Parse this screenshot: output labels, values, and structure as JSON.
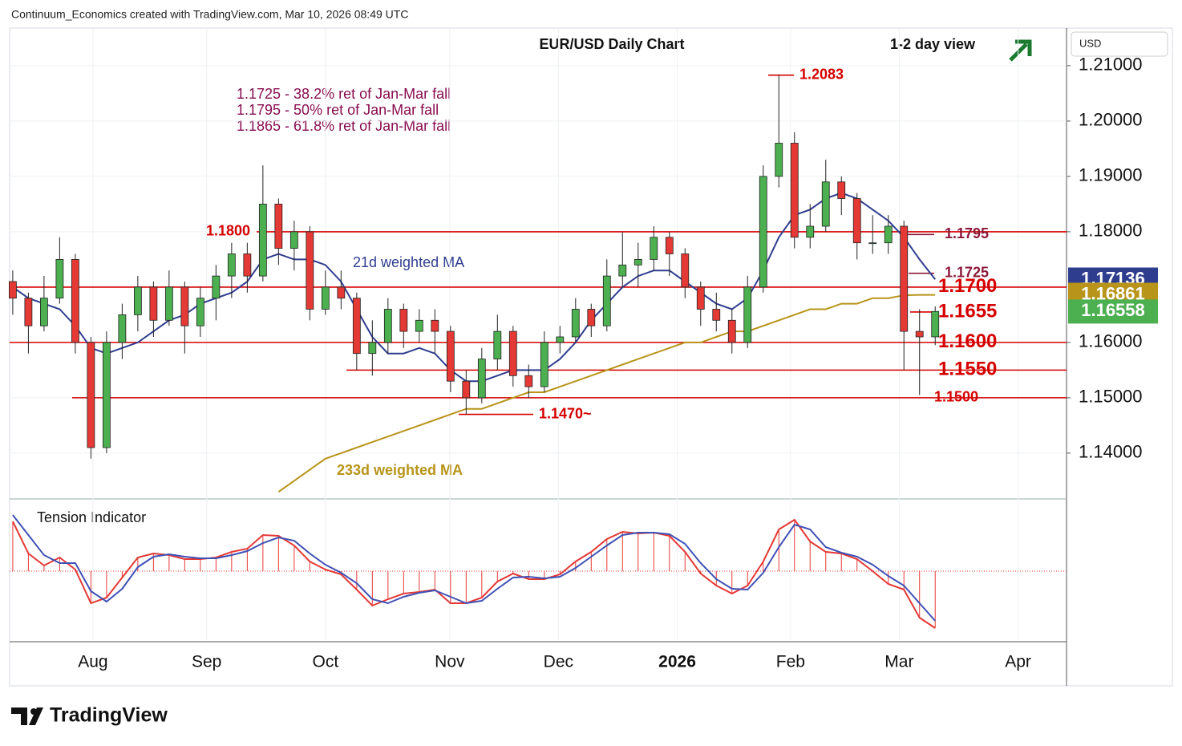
{
  "header": "Continuum_Economics created with TradingView.com, Mar 10, 2026 08:49 UTC",
  "chart_data": {
    "type": "candlestick",
    "title": "EUR/USD Daily Chart",
    "subtitle": "1-2 day view",
    "currency": "USD",
    "annotations": [
      "1.1725 - 38.2% ret of Jan-Mar fall",
      "1.1795 - 50% ret of Jan-Mar fall",
      "1.1865 - 61.8% ret of Jan-Mar fall"
    ],
    "ylim": [
      1.1323,
      1.2168
    ],
    "yticks": [
      {
        "value": 1.21,
        "label": "1.21000"
      },
      {
        "value": 1.2,
        "label": "1.20000"
      },
      {
        "value": 1.19,
        "label": "1.19000"
      },
      {
        "value": 1.18,
        "label": "1.18000"
      },
      {
        "value": 1.16,
        "label": "1.16000"
      },
      {
        "value": 1.15,
        "label": "1.15000"
      },
      {
        "value": 1.14,
        "label": "1.14000"
      }
    ],
    "xlim": [
      -0.2,
      67.4
    ],
    "xticks": [
      {
        "value": 5.13,
        "label": "Aug"
      },
      {
        "value": 12.4,
        "label": "Sep"
      },
      {
        "value": 20,
        "label": "Oct"
      },
      {
        "value": 27.95,
        "label": "Nov"
      },
      {
        "value": 34.9,
        "label": "Dec"
      },
      {
        "value": 42.5,
        "label": "2026"
      },
      {
        "value": 49.75,
        "label": "Feb"
      },
      {
        "value": 56.7,
        "label": "Mar"
      },
      {
        "value": 64.3,
        "label": "Apr"
      }
    ],
    "up_color": "#4caf50",
    "down_color": "#e53935",
    "candles": [
      [
        1.171,
        1.173,
        1.165,
        1.168
      ],
      [
        1.168,
        1.169,
        1.158,
        1.163
      ],
      [
        1.163,
        1.172,
        1.162,
        1.168
      ],
      [
        1.168,
        1.179,
        1.167,
        1.175
      ],
      [
        1.175,
        1.176,
        1.158,
        1.16
      ],
      [
        1.16,
        1.161,
        1.139,
        1.141
      ],
      [
        1.141,
        1.162,
        1.14,
        1.16
      ],
      [
        1.16,
        1.167,
        1.157,
        1.165
      ],
      [
        1.165,
        1.172,
        1.162,
        1.17
      ],
      [
        1.17,
        1.171,
        1.161,
        1.164
      ],
      [
        1.164,
        1.173,
        1.163,
        1.17
      ],
      [
        1.17,
        1.171,
        1.158,
        1.163
      ],
      [
        1.163,
        1.17,
        1.161,
        1.168
      ],
      [
        1.168,
        1.174,
        1.164,
        1.172
      ],
      [
        1.172,
        1.178,
        1.168,
        1.176
      ],
      [
        1.176,
        1.178,
        1.169,
        1.172
      ],
      [
        1.172,
        1.192,
        1.171,
        1.185
      ],
      [
        1.185,
        1.186,
        1.174,
        1.177
      ],
      [
        1.177,
        1.182,
        1.173,
        1.18
      ],
      [
        1.18,
        1.181,
        1.164,
        1.166
      ],
      [
        1.166,
        1.173,
        1.165,
        1.17
      ],
      [
        1.17,
        1.173,
        1.166,
        1.168
      ],
      [
        1.168,
        1.169,
        1.155,
        1.158
      ],
      [
        1.158,
        1.164,
        1.154,
        1.16
      ],
      [
        1.16,
        1.168,
        1.158,
        1.166
      ],
      [
        1.166,
        1.167,
        1.159,
        1.162
      ],
      [
        1.162,
        1.166,
        1.16,
        1.164
      ],
      [
        1.164,
        1.166,
        1.158,
        1.162
      ],
      [
        1.162,
        1.163,
        1.151,
        1.153
      ],
      [
        1.153,
        1.155,
        1.147,
        1.15
      ],
      [
        1.15,
        1.159,
        1.149,
        1.157
      ],
      [
        1.157,
        1.165,
        1.155,
        1.162
      ],
      [
        1.162,
        1.163,
        1.152,
        1.154
      ],
      [
        1.154,
        1.156,
        1.15,
        1.152
      ],
      [
        1.152,
        1.162,
        1.151,
        1.16
      ],
      [
        1.16,
        1.163,
        1.158,
        1.161
      ],
      [
        1.161,
        1.168,
        1.16,
        1.166
      ],
      [
        1.166,
        1.167,
        1.161,
        1.163
      ],
      [
        1.163,
        1.175,
        1.162,
        1.172
      ],
      [
        1.172,
        1.18,
        1.17,
        1.174
      ],
      [
        1.174,
        1.178,
        1.17,
        1.175
      ],
      [
        1.175,
        1.181,
        1.173,
        1.179
      ],
      [
        1.179,
        1.18,
        1.172,
        1.176
      ],
      [
        1.176,
        1.177,
        1.168,
        1.17
      ],
      [
        1.17,
        1.171,
        1.163,
        1.166
      ],
      [
        1.166,
        1.169,
        1.162,
        1.164
      ],
      [
        1.164,
        1.166,
        1.158,
        1.16
      ],
      [
        1.16,
        1.172,
        1.159,
        1.17
      ],
      [
        1.17,
        1.192,
        1.169,
        1.19
      ],
      [
        1.19,
        1.2083,
        1.188,
        1.196
      ],
      [
        1.196,
        1.198,
        1.177,
        1.179
      ],
      [
        1.179,
        1.185,
        1.177,
        1.181
      ],
      [
        1.181,
        1.193,
        1.18,
        1.189
      ],
      [
        1.189,
        1.19,
        1.183,
        1.186
      ],
      [
        1.186,
        1.187,
        1.175,
        1.178
      ],
      [
        1.178,
        1.183,
        1.176,
        1.178
      ],
      [
        1.178,
        1.183,
        1.176,
        1.181
      ],
      [
        1.181,
        1.182,
        1.155,
        1.162
      ],
      [
        1.162,
        1.166,
        1.1505,
        1.161
      ],
      [
        1.161,
        1.1665,
        1.1595,
        1.1656
      ]
    ],
    "series": [
      {
        "name": "21d weighted MA",
        "color": "#2f3d8f",
        "values": [
          1.17,
          1.168,
          1.167,
          1.166,
          1.163,
          1.159,
          1.158,
          1.159,
          1.16,
          1.162,
          1.164,
          1.165,
          1.167,
          1.168,
          1.169,
          1.171,
          1.175,
          1.176,
          1.175,
          1.175,
          1.174,
          1.171,
          1.166,
          1.161,
          1.158,
          1.158,
          1.159,
          1.158,
          1.155,
          1.153,
          1.153,
          1.154,
          1.155,
          1.155,
          1.155,
          1.157,
          1.16,
          1.164,
          1.167,
          1.17,
          1.172,
          1.173,
          1.173,
          1.171,
          1.169,
          1.167,
          1.166,
          1.168,
          1.173,
          1.179,
          1.183,
          1.184,
          1.186,
          1.187,
          1.186,
          1.184,
          1.182,
          1.179,
          1.175,
          1.1714
        ]
      },
      {
        "name": "233d weighted MA",
        "color": "#b8941a",
        "values": [
          null,
          null,
          null,
          null,
          null,
          null,
          null,
          null,
          null,
          null,
          null,
          null,
          null,
          null,
          null,
          null,
          null,
          1.133,
          1.135,
          1.137,
          1.139,
          1.14,
          1.141,
          1.142,
          1.143,
          1.144,
          1.145,
          1.146,
          1.147,
          1.148,
          1.148,
          1.149,
          1.15,
          1.151,
          1.151,
          1.152,
          1.153,
          1.154,
          1.155,
          1.156,
          1.157,
          1.158,
          1.159,
          1.16,
          1.16,
          1.161,
          1.162,
          1.162,
          1.163,
          1.164,
          1.165,
          1.166,
          1.166,
          1.167,
          1.167,
          1.168,
          1.168,
          1.1685,
          1.1686,
          1.1686
        ]
      }
    ],
    "levels": [
      {
        "value": 1.2083,
        "label": "1.2083",
        "color": "#d50000"
      },
      {
        "value": 1.18,
        "label": "1.1800",
        "color": "#d50000"
      },
      {
        "value": 1.1795,
        "label": "1.1795",
        "color": "#8b1a3a"
      },
      {
        "value": 1.1725,
        "label": "1.1725",
        "color": "#8b1a3a"
      },
      {
        "value": 1.17,
        "label": "1.1700",
        "color": "#d50000"
      },
      {
        "value": 1.1655,
        "label": "1.1655",
        "color": "#d50000"
      },
      {
        "value": 1.16,
        "label": "1.1600",
        "color": "#d50000"
      },
      {
        "value": 1.155,
        "label": "1.1550",
        "color": "#d50000"
      },
      {
        "value": 1.15,
        "label": "1.1500",
        "color": "#d50000"
      },
      {
        "value": 1.147,
        "label": "1.1470~",
        "color": "#d50000"
      }
    ],
    "price_tags": [
      {
        "value": 1.17136,
        "color": "#2f3d8f"
      },
      {
        "value": 1.16861,
        "color": "#b8941a"
      },
      {
        "value": 1.16558,
        "color": "#4caf50"
      }
    ],
    "indicator": {
      "title": "Tension Indicator",
      "ylim": [
        -86,
        84
      ],
      "histogram_color": "#e53935",
      "fast": [
        62,
        22,
        7,
        17,
        2,
        -40,
        -33,
        -8,
        17,
        22,
        20,
        15,
        15,
        17,
        24,
        28,
        45,
        44,
        32,
        12,
        2,
        -4,
        -23,
        -43,
        -35,
        -28,
        -26,
        -23,
        -40,
        -40,
        -33,
        -13,
        -3,
        -10,
        -10,
        -4,
        12,
        24,
        40,
        49,
        47,
        48,
        44,
        24,
        -3,
        -18,
        -28,
        -18,
        12,
        52,
        64,
        37,
        24,
        22,
        15,
        0,
        -16,
        -23,
        -58,
        -71
      ],
      "slow": [
        70,
        45,
        20,
        10,
        10,
        -25,
        -38,
        -22,
        5,
        18,
        21,
        18,
        16,
        16,
        20,
        25,
        35,
        42,
        38,
        22,
        8,
        -2,
        -15,
        -35,
        -40,
        -32,
        -27,
        -24,
        -32,
        -40,
        -37,
        -22,
        -8,
        -7,
        -9,
        -7,
        4,
        18,
        32,
        45,
        48,
        48,
        46,
        34,
        10,
        -10,
        -22,
        -23,
        -2,
        30,
        58,
        52,
        30,
        23,
        18,
        8,
        -6,
        -18,
        -40,
        -62
      ],
      "slow_color": "#3f51b5"
    }
  },
  "footer": {
    "logo": "TradingView"
  }
}
